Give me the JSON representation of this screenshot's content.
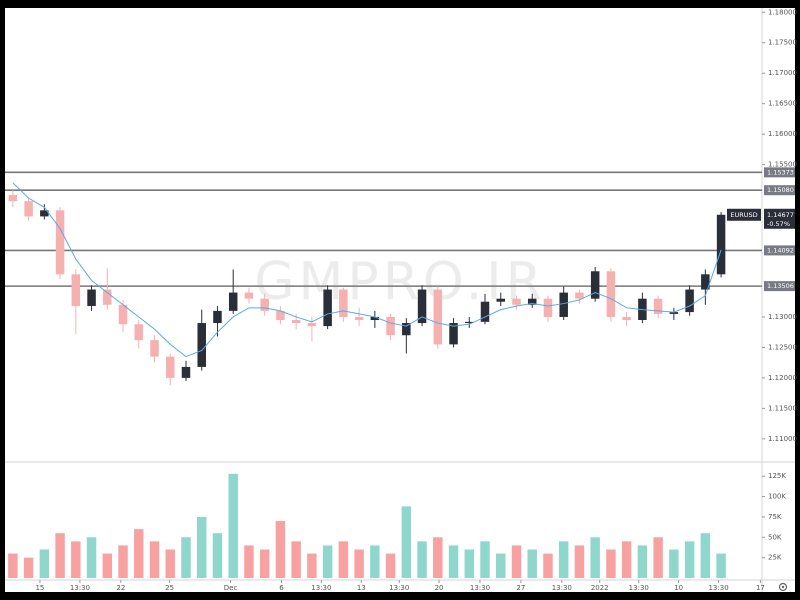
{
  "chart_data": {
    "type": "candlestick",
    "watermark": "GMPRO.IR",
    "symbol": "EURUSD",
    "last_price": 1.14677,
    "change": -0.57,
    "change_label": "-0.57%",
    "up_color": "#2a2e39",
    "down_color": "#f5b0b0",
    "candles": {
      "open": [
        1.15,
        1.149,
        1.1465,
        1.1475,
        1.137,
        1.1318,
        1.1345,
        1.132,
        1.1288,
        1.1262,
        1.1235,
        1.12,
        1.1218,
        1.129,
        1.131,
        1.134,
        1.133,
        1.131,
        1.1295,
        1.129,
        1.1285,
        1.1345,
        1.13,
        1.1295,
        1.13,
        1.127,
        1.129,
        1.1345,
        1.1255,
        1.129,
        1.1292,
        1.1325,
        1.133,
        1.132,
        1.133,
        1.13,
        1.134,
        1.133,
        1.1375,
        1.13,
        1.1295,
        1.133,
        1.1305,
        1.1308,
        1.1345,
        1.137
      ],
      "high": [
        1.1508,
        1.1495,
        1.1485,
        1.148,
        1.1378,
        1.1352,
        1.138,
        1.1328,
        1.1295,
        1.127,
        1.124,
        1.1228,
        1.1312,
        1.1318,
        1.1378,
        1.1348,
        1.1338,
        1.1318,
        1.1305,
        1.13,
        1.1352,
        1.1348,
        1.1315,
        1.131,
        1.1305,
        1.1298,
        1.1352,
        1.135,
        1.1298,
        1.13,
        1.1338,
        1.134,
        1.1335,
        1.1338,
        1.1335,
        1.135,
        1.1345,
        1.1382,
        1.138,
        1.1308,
        1.134,
        1.1335,
        1.1315,
        1.1352,
        1.1378,
        1.1472
      ],
      "low": [
        1.148,
        1.1458,
        1.146,
        1.1362,
        1.1272,
        1.131,
        1.1312,
        1.1275,
        1.1248,
        1.1225,
        1.1188,
        1.1195,
        1.1212,
        1.1268,
        1.1305,
        1.1322,
        1.1302,
        1.1288,
        1.128,
        1.126,
        1.128,
        1.1292,
        1.1285,
        1.1282,
        1.1262,
        1.124,
        1.1285,
        1.1248,
        1.125,
        1.1282,
        1.1288,
        1.1318,
        1.1312,
        1.1315,
        1.1292,
        1.1295,
        1.1322,
        1.1325,
        1.1292,
        1.1285,
        1.129,
        1.1298,
        1.1295,
        1.1302,
        1.132,
        1.1365
      ],
      "close": [
        1.149,
        1.1465,
        1.1475,
        1.137,
        1.1318,
        1.1345,
        1.132,
        1.1288,
        1.1262,
        1.1235,
        1.12,
        1.1218,
        1.129,
        1.131,
        1.134,
        1.133,
        1.131,
        1.1295,
        1.129,
        1.1285,
        1.1345,
        1.13,
        1.1295,
        1.13,
        1.127,
        1.129,
        1.1345,
        1.1255,
        1.129,
        1.1292,
        1.1325,
        1.133,
        1.132,
        1.133,
        1.13,
        1.134,
        1.133,
        1.1375,
        1.13,
        1.1295,
        1.133,
        1.1305,
        1.1308,
        1.1345,
        1.137,
        1.14677
      ]
    },
    "ma": {
      "color": "#5aa9e6",
      "values": [
        1.152,
        1.1495,
        1.148,
        1.1445,
        1.1395,
        1.136,
        1.134,
        1.132,
        1.13,
        1.128,
        1.1255,
        1.1235,
        1.1245,
        1.1275,
        1.13,
        1.1315,
        1.1315,
        1.131,
        1.13,
        1.1292,
        1.1305,
        1.131,
        1.1305,
        1.13,
        1.129,
        1.1285,
        1.13,
        1.129,
        1.1285,
        1.1288,
        1.13,
        1.1312,
        1.1318,
        1.1322,
        1.1318,
        1.1322,
        1.1328,
        1.134,
        1.133,
        1.1315,
        1.1312,
        1.131,
        1.1308,
        1.1318,
        1.1335,
        1.141
      ]
    },
    "volume": {
      "up_color": "#8fd6cc",
      "down_color": "#f7a1a1",
      "values": [
        30000,
        25000,
        35000,
        55000,
        45000,
        50000,
        30000,
        40000,
        60000,
        45000,
        35000,
        50000,
        75000,
        55000,
        128000,
        40000,
        35000,
        70000,
        45000,
        30000,
        40000,
        45000,
        35000,
        40000,
        30000,
        88000,
        45000,
        50000,
        40000,
        35000,
        45000,
        30000,
        40000,
        35000,
        30000,
        45000,
        40000,
        50000,
        35000,
        45000,
        40000,
        50000,
        35000,
        45000,
        55000,
        30000
      ],
      "ylim": [
        0,
        140000
      ],
      "yticks": [
        {
          "value": 125000,
          "label": "125K"
        },
        {
          "value": 100000,
          "label": "100K"
        },
        {
          "value": 75000,
          "label": "75K"
        },
        {
          "value": 50000,
          "label": "50K"
        },
        {
          "value": 25000,
          "label": "25K"
        }
      ]
    },
    "levels": [
      1.15373,
      {
        "value": 1.1508,
        "label": "1.15080"
      },
      1.14092,
      1.13506
    ],
    "ylim": [
      1.1062,
      1.1807
    ],
    "yticks": [
      {
        "value": 1.18,
        "label": "1.18000"
      },
      {
        "value": 1.175,
        "label": "1.17500"
      },
      {
        "value": 1.17,
        "label": "1.17000"
      },
      {
        "value": 1.165,
        "label": "1.16500"
      },
      {
        "value": 1.16,
        "label": "1.16000"
      },
      {
        "value": 1.155,
        "label": "1.15500"
      },
      {
        "value": 1.13,
        "label": "1.13000"
      },
      {
        "value": 1.125,
        "label": "1.12500"
      },
      {
        "value": 1.12,
        "label": "1.12000"
      },
      {
        "value": 1.115,
        "label": "1.11500"
      },
      {
        "value": 1.11,
        "label": "1.11000"
      }
    ],
    "xlim": [
      -0.5,
      47.6
    ],
    "xticks": [
      {
        "value": 1.72,
        "label": "15"
      },
      {
        "value": 4.26,
        "label": "13:30"
      },
      {
        "value": 6.86,
        "label": "22"
      },
      {
        "value": 9.96,
        "label": "25"
      },
      {
        "value": 13.83,
        "label": "Dec"
      },
      {
        "value": 17.07,
        "label": "6"
      },
      {
        "value": 19.6,
        "label": "13:30"
      },
      {
        "value": 22.14,
        "label": "13"
      },
      {
        "value": 24.55,
        "label": "13:30"
      },
      {
        "value": 27.08,
        "label": "20"
      },
      {
        "value": 29.68,
        "label": "13:30"
      },
      {
        "value": 32.28,
        "label": "27"
      },
      {
        "value": 34.88,
        "label": "13:30"
      },
      {
        "value": 37.29,
        "label": "2022"
      },
      {
        "value": 39.77,
        "label": "13:30"
      },
      {
        "value": 42.3,
        "label": "10"
      },
      {
        "value": 44.84,
        "label": "13:30"
      },
      {
        "value": 47.5,
        "label": "17"
      }
    ]
  }
}
